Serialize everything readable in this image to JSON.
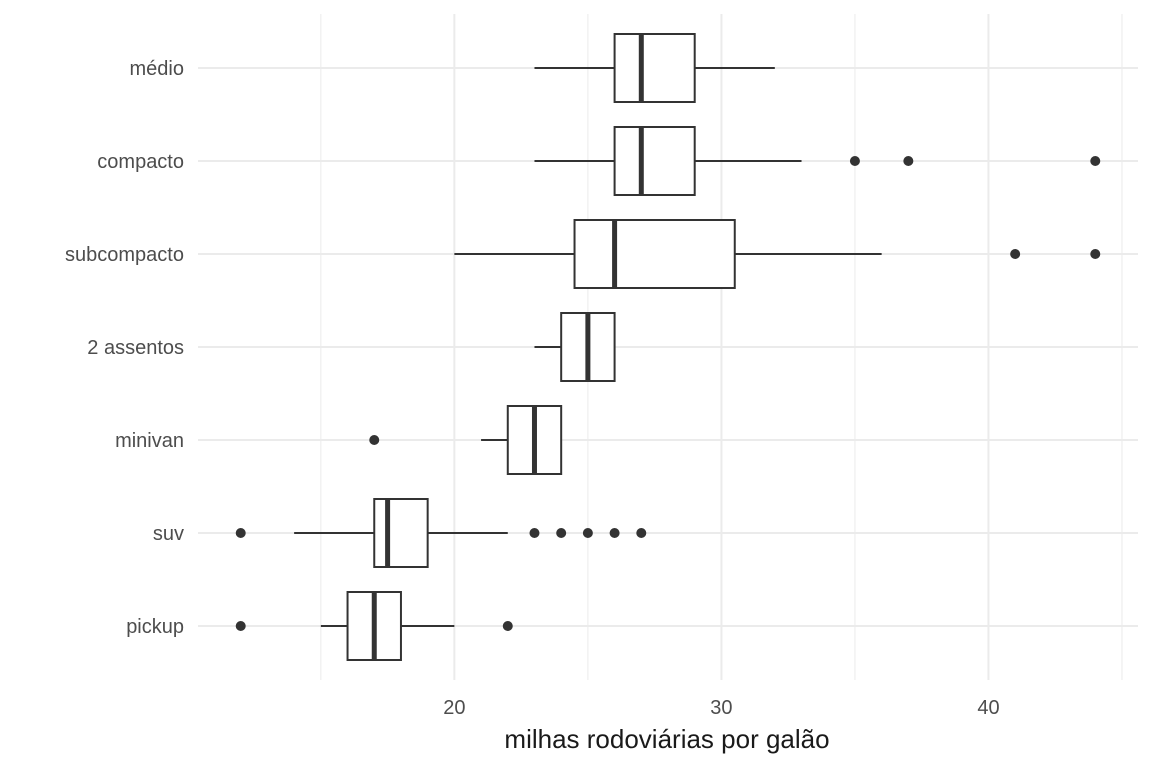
{
  "chart_data": {
    "type": "boxplot",
    "orientation": "horizontal",
    "xlabel": "milhas rodoviárias por galão",
    "ylabel": "",
    "xlim": [
      10.4,
      45.6
    ],
    "x_major_ticks": [
      20,
      30,
      40
    ],
    "x_minor_ticks": [
      15,
      25,
      35,
      45
    ],
    "grid": true,
    "legend": "none",
    "categories": [
      "pickup",
      "suv",
      "minivan",
      "2 assentos",
      "subcompacto",
      "compacto",
      "médio"
    ],
    "series": [
      {
        "category": "pickup",
        "whisker_low": 15,
        "q1": 16,
        "median": 17,
        "q3": 18,
        "whisker_high": 20,
        "outliers": [
          12,
          22
        ]
      },
      {
        "category": "suv",
        "whisker_low": 14,
        "q1": 17,
        "median": 17.5,
        "q3": 19,
        "whisker_high": 22,
        "outliers": [
          12,
          23,
          24,
          25,
          26,
          27
        ]
      },
      {
        "category": "minivan",
        "whisker_low": 21,
        "q1": 22,
        "median": 23,
        "q3": 24,
        "whisker_high": 24,
        "outliers": [
          17
        ]
      },
      {
        "category": "2 assentos",
        "whisker_low": 23,
        "q1": 24,
        "median": 25,
        "q3": 26,
        "whisker_high": 26,
        "outliers": []
      },
      {
        "category": "subcompacto",
        "whisker_low": 20,
        "q1": 24.5,
        "median": 26,
        "q3": 30.5,
        "whisker_high": 36,
        "outliers": [
          41,
          44
        ]
      },
      {
        "category": "compacto",
        "whisker_low": 23,
        "q1": 26,
        "median": 27,
        "q3": 29,
        "whisker_high": 33,
        "outliers": [
          35,
          37,
          44
        ]
      },
      {
        "category": "médio",
        "whisker_low": 23,
        "q1": 26,
        "median": 27,
        "q3": 29,
        "whisker_high": 32,
        "outliers": []
      }
    ],
    "colors": {
      "grid": "#ebebeb",
      "box_stroke": "#333333",
      "point": "#333333",
      "tick_text": "#4d4d4d",
      "title_text": "#1a1a1a"
    }
  }
}
